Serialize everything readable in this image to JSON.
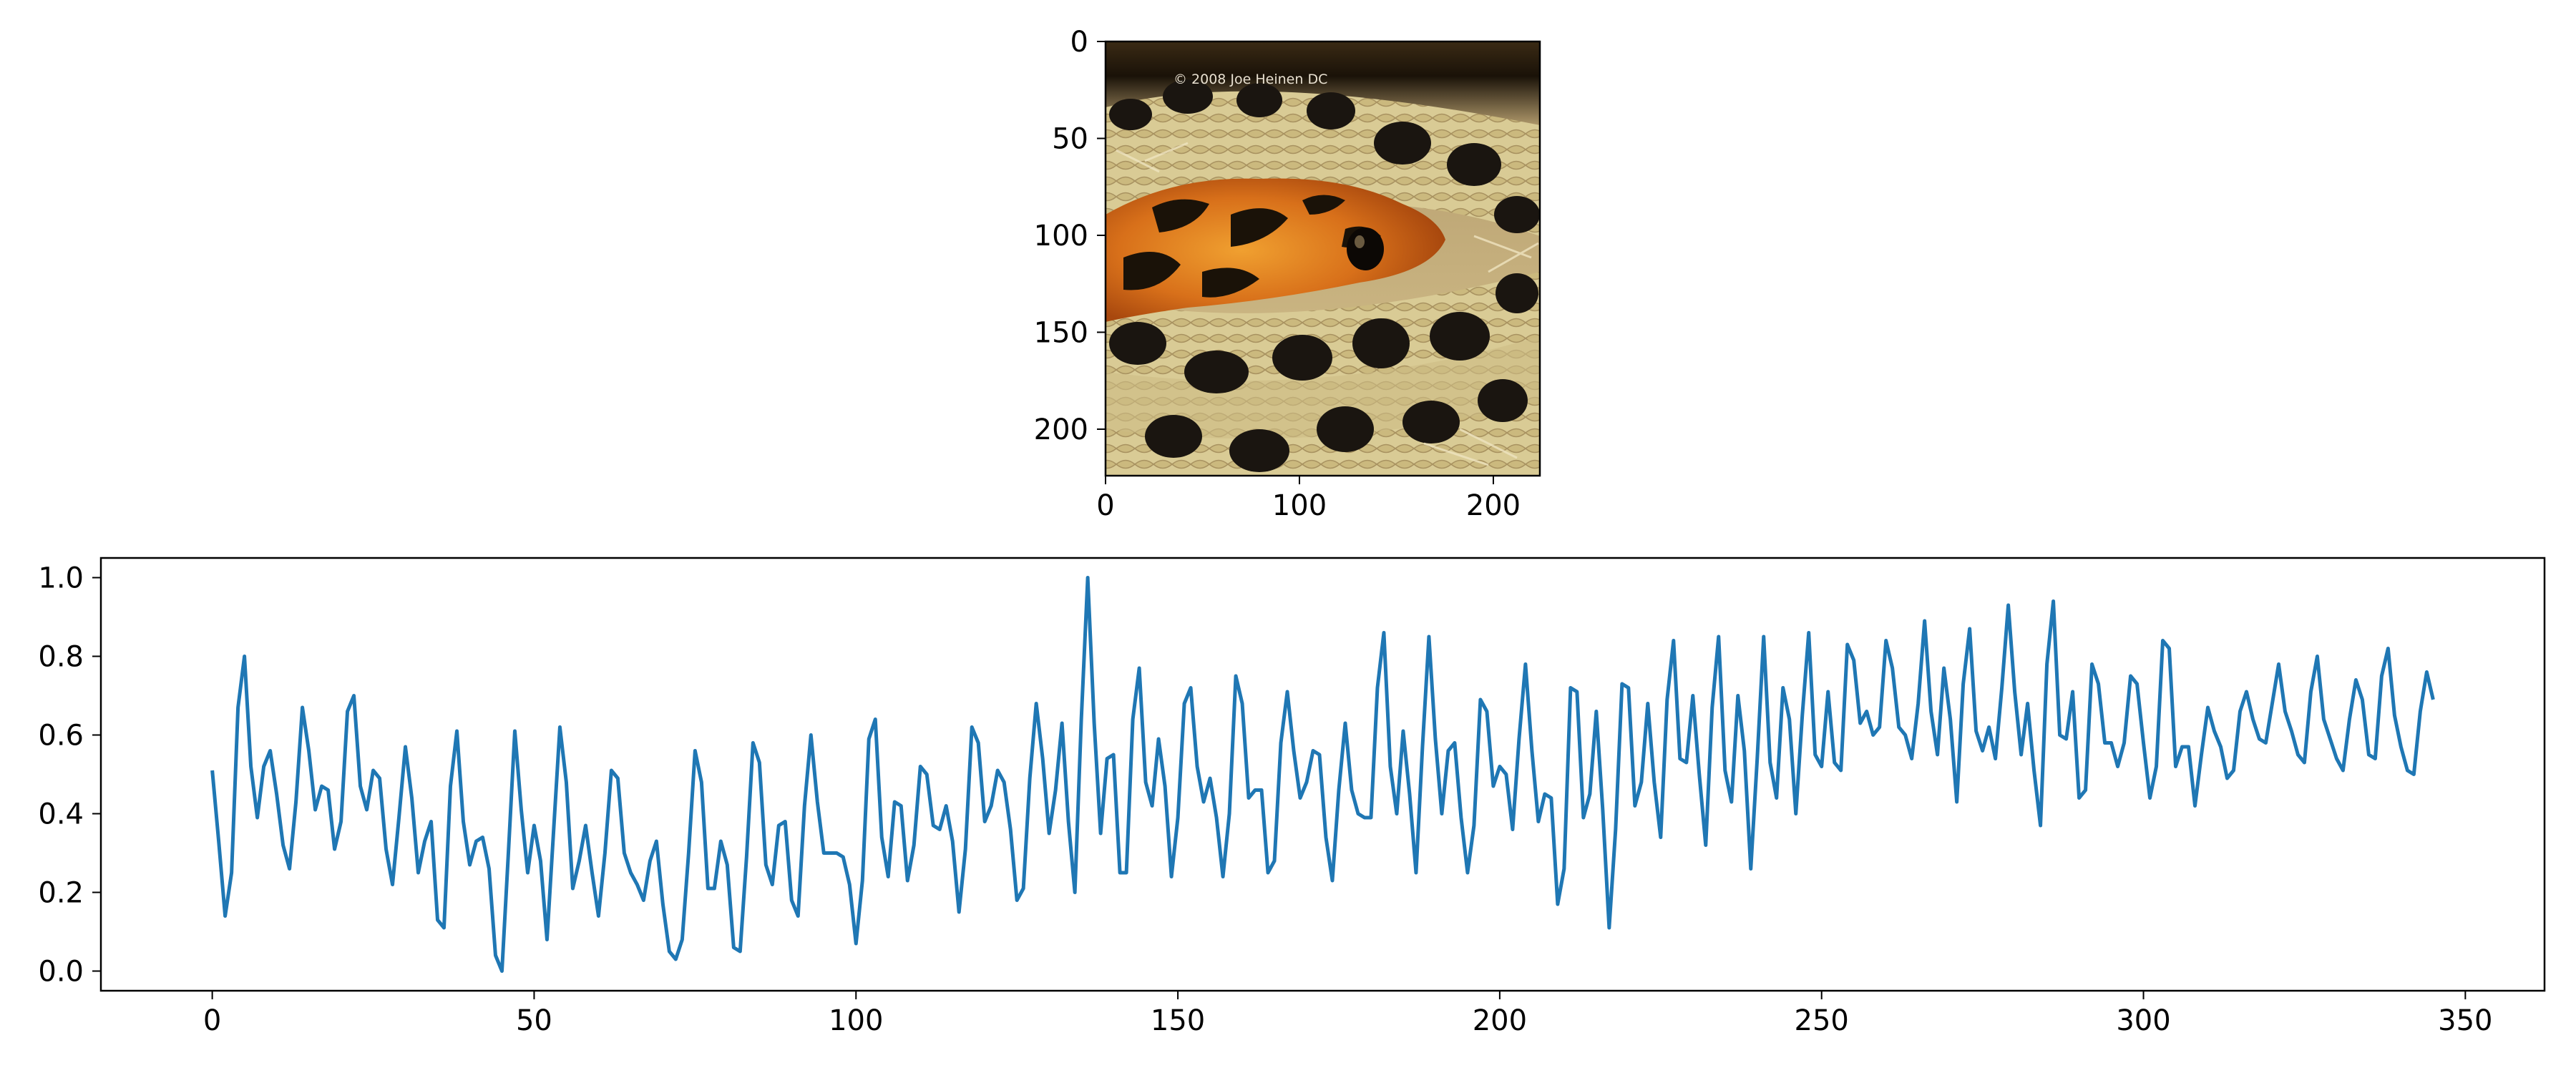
{
  "figure": {
    "background": "#ffffff",
    "axis_color": "#000000"
  },
  "chart_data": [
    {
      "type": "image",
      "x_ticks": [
        "0",
        "100",
        "200"
      ],
      "y_ticks": [
        "0",
        "50",
        "100",
        "150",
        "200"
      ],
      "x_tick_values": [
        0,
        100,
        200
      ],
      "y_tick_values": [
        0,
        50,
        100,
        150,
        200
      ],
      "xlim": [
        0,
        224
      ],
      "ylim": [
        224,
        0
      ],
      "image": {
        "subject": "coiled snake with orange and black blotched head",
        "watermark": "© 2008 Joe Heinen DC"
      }
    },
    {
      "type": "line",
      "color": "#1f77b4",
      "xlim": [
        -17.3,
        362.3
      ],
      "ylim": [
        -0.05,
        1.05
      ],
      "x_ticks": [
        "0",
        "50",
        "100",
        "150",
        "200",
        "250",
        "300",
        "350"
      ],
      "x_tick_values": [
        0,
        50,
        100,
        150,
        200,
        250,
        300,
        350
      ],
      "y_ticks": [
        "0.0",
        "0.2",
        "0.4",
        "0.6",
        "0.8",
        "1.0"
      ],
      "y_tick_values": [
        0.0,
        0.2,
        0.4,
        0.6,
        0.8,
        1.0
      ],
      "grid": false,
      "series": [
        {
          "x_start": 0,
          "x_step": 1,
          "values": [
            0.51,
            0.33,
            0.14,
            0.25,
            0.67,
            0.8,
            0.52,
            0.39,
            0.52,
            0.56,
            0.45,
            0.32,
            0.26,
            0.43,
            0.67,
            0.56,
            0.41,
            0.47,
            0.46,
            0.31,
            0.38,
            0.66,
            0.7,
            0.47,
            0.41,
            0.51,
            0.49,
            0.31,
            0.22,
            0.39,
            0.57,
            0.44,
            0.25,
            0.33,
            0.38,
            0.13,
            0.11,
            0.47,
            0.61,
            0.38,
            0.27,
            0.33,
            0.34,
            0.26,
            0.04,
            0.0,
            0.3,
            0.61,
            0.41,
            0.25,
            0.37,
            0.28,
            0.08,
            0.35,
            0.62,
            0.48,
            0.21,
            0.28,
            0.37,
            0.25,
            0.14,
            0.3,
            0.51,
            0.49,
            0.3,
            0.25,
            0.22,
            0.18,
            0.28,
            0.33,
            0.17,
            0.05,
            0.03,
            0.08,
            0.3,
            0.56,
            0.48,
            0.21,
            0.21,
            0.33,
            0.27,
            0.06,
            0.05,
            0.29,
            0.58,
            0.53,
            0.27,
            0.22,
            0.37,
            0.38,
            0.18,
            0.14,
            0.42,
            0.6,
            0.43,
            0.3,
            0.3,
            0.3,
            0.29,
            0.22,
            0.07,
            0.23,
            0.59,
            0.64,
            0.34,
            0.24,
            0.43,
            0.42,
            0.23,
            0.32,
            0.52,
            0.5,
            0.37,
            0.36,
            0.42,
            0.33,
            0.15,
            0.31,
            0.62,
            0.58,
            0.38,
            0.42,
            0.51,
            0.48,
            0.36,
            0.18,
            0.21,
            0.49,
            0.68,
            0.54,
            0.35,
            0.46,
            0.63,
            0.38,
            0.2,
            0.64,
            1.0,
            0.63,
            0.35,
            0.54,
            0.55,
            0.25,
            0.25,
            0.64,
            0.77,
            0.48,
            0.42,
            0.59,
            0.47,
            0.24,
            0.39,
            0.68,
            0.72,
            0.52,
            0.43,
            0.49,
            0.39,
            0.24,
            0.4,
            0.75,
            0.68,
            0.44,
            0.46,
            0.46,
            0.25,
            0.28,
            0.58,
            0.71,
            0.56,
            0.44,
            0.48,
            0.56,
            0.55,
            0.34,
            0.23,
            0.46,
            0.63,
            0.46,
            0.4,
            0.39,
            0.39,
            0.72,
            0.86,
            0.52,
            0.4,
            0.61,
            0.45,
            0.25,
            0.57,
            0.85,
            0.59,
            0.4,
            0.56,
            0.58,
            0.39,
            0.25,
            0.37,
            0.69,
            0.66,
            0.47,
            0.52,
            0.5,
            0.36,
            0.59,
            0.78,
            0.56,
            0.38,
            0.45,
            0.44,
            0.17,
            0.26,
            0.72,
            0.71,
            0.39,
            0.45,
            0.66,
            0.41,
            0.11,
            0.36,
            0.73,
            0.72,
            0.42,
            0.48,
            0.68,
            0.48,
            0.34,
            0.69,
            0.84,
            0.54,
            0.53,
            0.7,
            0.5,
            0.32,
            0.67,
            0.85,
            0.51,
            0.43,
            0.7,
            0.56,
            0.26,
            0.54,
            0.85,
            0.53,
            0.44,
            0.72,
            0.64,
            0.4,
            0.65,
            0.86,
            0.55,
            0.52,
            0.71,
            0.53,
            0.51,
            0.83,
            0.79,
            0.63,
            0.66,
            0.6,
            0.62,
            0.84,
            0.77,
            0.62,
            0.6,
            0.54,
            0.68,
            0.89,
            0.66,
            0.55,
            0.77,
            0.64,
            0.43,
            0.73,
            0.87,
            0.61,
            0.56,
            0.62,
            0.54,
            0.72,
            0.93,
            0.71,
            0.55,
            0.68,
            0.51,
            0.37,
            0.78,
            0.94,
            0.6,
            0.59,
            0.71,
            0.44,
            0.46,
            0.78,
            0.73,
            0.58,
            0.58,
            0.52,
            0.58,
            0.75,
            0.73,
            0.58,
            0.44,
            0.52,
            0.84,
            0.82,
            0.52,
            0.57,
            0.57,
            0.42,
            0.55,
            0.67,
            0.61,
            0.57,
            0.49,
            0.51,
            0.66,
            0.71,
            0.64,
            0.59,
            0.58,
            0.68,
            0.78,
            0.66,
            0.61,
            0.55,
            0.53,
            0.71,
            0.8,
            0.64,
            0.59,
            0.54,
            0.51,
            0.64,
            0.74,
            0.69,
            0.55,
            0.54,
            0.75,
            0.82,
            0.65,
            0.57,
            0.51,
            0.5,
            0.66,
            0.76,
            0.69
          ]
        }
      ]
    }
  ]
}
